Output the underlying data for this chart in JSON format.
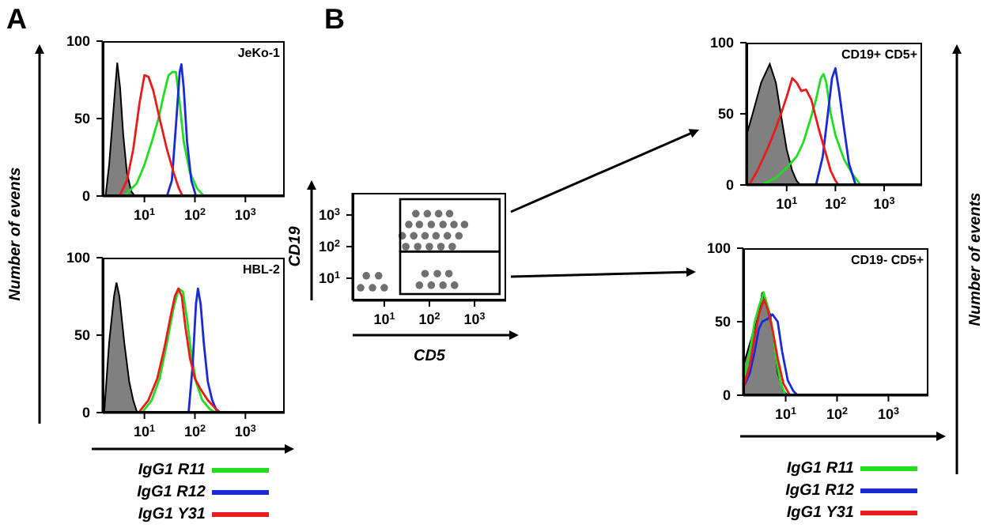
{
  "chart_data": [
    {
      "type": "line",
      "title": "JeKo-1",
      "ylabel": "Number of events",
      "annotations": [
        "A"
      ],
      "xlim": [
        1.5,
        6000
      ],
      "xticks": [
        {
          "value": 10,
          "label": "10$^{1}$"
        },
        {
          "value": 100,
          "label": "10$^{2}$"
        },
        {
          "value": 1000,
          "label": "10$^{3}$"
        }
      ],
      "ylim": [
        0,
        100
      ],
      "yticks": [
        0,
        50,
        100
      ],
      "log": "x",
      "grid": false,
      "marker": "none",
      "series": [
        {
          "type": "area",
          "color": "#808080",
          "x": [
            1.7,
            2.0,
            2.5,
            2.9,
            3.3,
            3.8,
            4.5,
            5.5,
            6.5
          ],
          "values": [
            0,
            20,
            60,
            86,
            70,
            40,
            15,
            3,
            0
          ]
        },
        {
          "color": "#22dd22",
          "x": [
            4,
            7,
            10,
            14,
            19,
            24,
            30,
            36,
            42,
            50,
            60,
            80,
            110,
            150
          ],
          "values": [
            0,
            8,
            20,
            35,
            50,
            65,
            78,
            80,
            80,
            60,
            35,
            15,
            5,
            0
          ]
        },
        {
          "color": "#1a2bd6",
          "x": [
            28,
            35,
            42,
            50,
            54,
            60,
            70,
            85,
            105
          ],
          "values": [
            0,
            10,
            45,
            80,
            85,
            70,
            35,
            10,
            0
          ]
        },
        {
          "color": "#e81c1c",
          "x": [
            3.2,
            4.5,
            6,
            8,
            10,
            12,
            15,
            20,
            28,
            38,
            48,
            57
          ],
          "values": [
            0,
            10,
            30,
            60,
            78,
            77,
            68,
            50,
            30,
            15,
            5,
            0
          ]
        }
      ]
    },
    {
      "type": "line",
      "title": "HBL-2",
      "legend": "bottom",
      "xlim": [
        1.5,
        6000
      ],
      "xticks": [
        {
          "value": 10,
          "label": "10$^{1}$"
        },
        {
          "value": 100,
          "label": "10$^{2}$"
        },
        {
          "value": 1000,
          "label": "10$^{3}$"
        }
      ],
      "ylim": [
        0,
        100
      ],
      "yticks": [
        0,
        50,
        100
      ],
      "log": "x",
      "grid": false,
      "marker": "none",
      "series": [
        {
          "type": "area",
          "color": "#808080",
          "x": [
            1.6,
            2.0,
            2.5,
            2.8,
            3.2,
            4,
            5,
            6,
            7.2
          ],
          "values": [
            0,
            45,
            75,
            84,
            75,
            45,
            20,
            8,
            0
          ]
        },
        {
          "name": "IgG1 R11",
          "color": "#22dd22",
          "x": [
            9,
            14,
            20,
            28,
            38,
            48,
            58,
            70,
            85,
            105,
            140,
            200,
            260
          ],
          "values": [
            0,
            8,
            22,
            45,
            68,
            80,
            78,
            60,
            38,
            20,
            8,
            2,
            0
          ]
        },
        {
          "name": "IgG1 R12",
          "color": "#1a2bd6",
          "x": [
            75,
            90,
            105,
            115,
            130,
            150,
            180,
            220,
            280
          ],
          "values": [
            0,
            30,
            70,
            80,
            70,
            45,
            20,
            8,
            0
          ]
        },
        {
          "name": "IgG1 Y31",
          "color": "#e81c1c",
          "x": [
            7.7,
            12,
            18,
            25,
            32,
            40,
            47,
            55,
            65,
            80,
            100,
            130,
            180,
            250,
            316
          ],
          "values": [
            0,
            8,
            22,
            42,
            60,
            75,
            80,
            75,
            55,
            35,
            22,
            15,
            8,
            3,
            0
          ]
        }
      ]
    },
    {
      "type": "scatter",
      "annotations": [
        "B"
      ],
      "xlabel": "CD5",
      "ylabel": "CD19",
      "xlim": [
        2,
        5000
      ],
      "ylim": [
        2,
        5000
      ],
      "xticks": [
        {
          "value": 10,
          "label": "10$^{1}$"
        },
        {
          "value": 100,
          "label": "10$^{2}$"
        },
        {
          "value": 1000,
          "label": "10$^{3}$"
        }
      ],
      "yticks": [
        {
          "value": 10,
          "label": "10$^{1}$"
        },
        {
          "value": 100,
          "label": "10$^{2}$"
        },
        {
          "value": 1000,
          "label": "10$^{3}$"
        }
      ],
      "log": "xy",
      "grid": false,
      "marker": "circle",
      "series": [
        {
          "color": "#707070",
          "x": [
            30,
            55,
            100,
            180,
            320,
            25,
            45,
            80,
            140,
            250,
            450,
            35,
            60,
            110,
            200,
            350,
            600,
            50,
            90,
            160,
            280,
            3,
            5.5,
            10,
            4,
            7.5,
            60,
            110,
            200,
            360,
            80,
            150,
            270
          ],
          "values": [
            100,
            100,
            100,
            100,
            100,
            220,
            220,
            220,
            220,
            220,
            220,
            500,
            500,
            500,
            500,
            500,
            500,
            1100,
            1100,
            1100,
            1100,
            5,
            5,
            5,
            12,
            12,
            6,
            6,
            6,
            6,
            14,
            14,
            14
          ]
        }
      ]
    },
    {
      "type": "line",
      "title": "CD19+ CD5+",
      "ylabel": "Number of events",
      "xlim": [
        1.5,
        6000
      ],
      "xticks": [
        {
          "value": 10,
          "label": "10$^{1}$"
        },
        {
          "value": 100,
          "label": "10$^{2}$"
        },
        {
          "value": 1000,
          "label": "10$^{3}$"
        }
      ],
      "ylim": [
        0,
        100
      ],
      "yticks": [
        0,
        50,
        100
      ],
      "log": "x",
      "grid": false,
      "marker": "none",
      "series": [
        {
          "type": "area",
          "color": "#808080",
          "x": [
            1.5,
            2,
            3,
            4.5,
            6,
            8,
            10,
            13,
            16,
            19
          ],
          "values": [
            35,
            50,
            72,
            85,
            72,
            45,
            25,
            10,
            3,
            0
          ]
        },
        {
          "color": "#22dd22",
          "x": [
            3,
            6,
            10,
            16,
            22,
            30,
            40,
            50,
            57,
            65,
            80,
            100,
            150,
            220,
            330
          ],
          "values": [
            0,
            5,
            12,
            20,
            30,
            45,
            60,
            75,
            78,
            72,
            50,
            35,
            18,
            8,
            0
          ]
        },
        {
          "color": "#1a2bd6",
          "x": [
            40,
            55,
            70,
            85,
            100,
            120,
            150,
            190,
            260
          ],
          "values": [
            0,
            20,
            50,
            75,
            82,
            65,
            40,
            15,
            0
          ]
        },
        {
          "color": "#e81c1c",
          "x": [
            1.7,
            2.5,
            4,
            6,
            8,
            10,
            13,
            16,
            20,
            25,
            32,
            45,
            60,
            80,
            100,
            117
          ],
          "values": [
            0,
            10,
            25,
            40,
            52,
            62,
            75,
            72,
            66,
            67,
            60,
            40,
            25,
            10,
            3,
            0
          ]
        }
      ]
    },
    {
      "type": "line",
      "title": "CD19- CD5+",
      "legend": "bottom",
      "xlim": [
        1.5,
        6000
      ],
      "xticks": [
        {
          "value": 10,
          "label": "10$^{1}$"
        },
        {
          "value": 100,
          "label": "10$^{2}$"
        },
        {
          "value": 1000,
          "label": "10$^{3}$"
        }
      ],
      "ylim": [
        0,
        100
      ],
      "yticks": [
        0,
        50,
        100
      ],
      "log": "x",
      "grid": false,
      "marker": "none",
      "series": [
        {
          "type": "area",
          "color": "#808080",
          "x": [
            1.5,
            2,
            3,
            3.5,
            5,
            6,
            7,
            9,
            11
          ],
          "values": [
            20,
            35,
            55,
            70,
            55,
            35,
            15,
            3,
            0
          ]
        },
        {
          "name": "IgG1 R11",
          "color": "#22dd22",
          "x": [
            1.5,
            2,
            2.5,
            3,
            3.7,
            4.5,
            5.5,
            6.5,
            8,
            10
          ],
          "values": [
            10,
            30,
            50,
            60,
            70,
            60,
            45,
            25,
            8,
            0
          ]
        },
        {
          "name": "IgG1 R12",
          "color": "#1a2bd6",
          "x": [
            1.5,
            2,
            2.5,
            3,
            3.5,
            4.5,
            5.5,
            7,
            8.5,
            11,
            14,
            17
          ],
          "values": [
            5,
            15,
            30,
            45,
            50,
            52,
            55,
            50,
            30,
            10,
            3,
            0
          ]
        },
        {
          "name": "IgG1 Y31",
          "color": "#e81c1c",
          "x": [
            1.5,
            2,
            2.5,
            3,
            3.8,
            4.5,
            5.5,
            7,
            9,
            12
          ],
          "values": [
            5,
            20,
            40,
            55,
            65,
            58,
            45,
            25,
            8,
            0
          ]
        }
      ]
    }
  ]
}
